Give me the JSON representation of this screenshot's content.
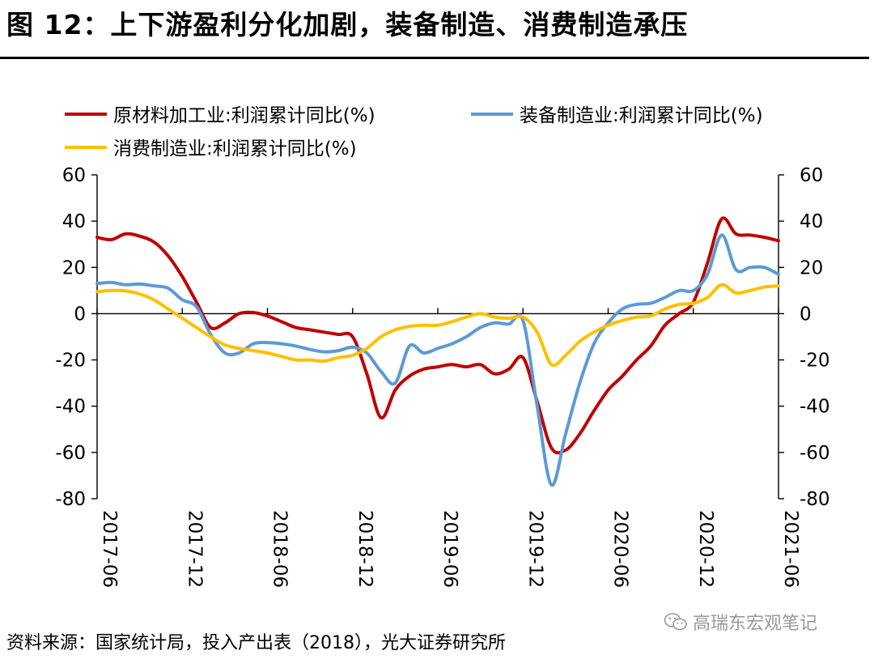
{
  "figure": {
    "title": "图 12：上下游盈利分化加剧，装备制造、消费制造承压",
    "source": "资料来源：国家统计局，投入产出表（2018），光大证券研究所",
    "watermark": "高瑞东宏观笔记"
  },
  "chart_data": {
    "type": "line",
    "title": "",
    "xlabel": "",
    "ylabel": "",
    "ylim": [
      -80,
      60
    ],
    "y2lim": [
      -80,
      60
    ],
    "yticks": [
      60,
      40,
      20,
      0,
      -20,
      -40,
      -60,
      -80
    ],
    "x_range": [
      "2017-06",
      "2021-06"
    ],
    "x_ticks": [
      "2017-06",
      "2017-12",
      "2018-06",
      "2018-12",
      "2019-06",
      "2019-12",
      "2020-06",
      "2020-12",
      "2021-06"
    ],
    "legend_position": "top",
    "series": [
      {
        "name": "原材料加工业:利润累计同比(%)",
        "color": "#C00000",
        "points": [
          [
            "2017-06",
            33
          ],
          [
            "2017-07",
            32
          ],
          [
            "2017-08",
            34.5
          ],
          [
            "2017-09",
            33.5
          ],
          [
            "2017-10",
            31
          ],
          [
            "2017-11",
            25
          ],
          [
            "2017-12",
            16
          ],
          [
            "2018-01",
            5
          ],
          [
            "2018-02",
            -6
          ],
          [
            "2018-03",
            -4
          ],
          [
            "2018-04",
            0
          ],
          [
            "2018-05",
            0.5
          ],
          [
            "2018-06",
            -1
          ],
          [
            "2018-07",
            -3.5
          ],
          [
            "2018-08",
            -6
          ],
          [
            "2018-09",
            -7
          ],
          [
            "2018-10",
            -8
          ],
          [
            "2018-11",
            -9
          ],
          [
            "2018-12",
            -10
          ],
          [
            "2019-01",
            -26
          ],
          [
            "2019-02",
            -45
          ],
          [
            "2019-03",
            -33
          ],
          [
            "2019-04",
            -27
          ],
          [
            "2019-05",
            -24
          ],
          [
            "2019-06",
            -23
          ],
          [
            "2019-07",
            -22
          ],
          [
            "2019-08",
            -23
          ],
          [
            "2019-09",
            -22
          ],
          [
            "2019-10",
            -26
          ],
          [
            "2019-11",
            -24
          ],
          [
            "2019-12",
            -19
          ],
          [
            "2020-01",
            -38
          ],
          [
            "2020-02",
            -58
          ],
          [
            "2020-03",
            -59
          ],
          [
            "2020-04",
            -52
          ],
          [
            "2020-05",
            -42
          ],
          [
            "2020-06",
            -33
          ],
          [
            "2020-07",
            -27
          ],
          [
            "2020-08",
            -20
          ],
          [
            "2020-09",
            -14
          ],
          [
            "2020-10",
            -5
          ],
          [
            "2020-11",
            0
          ],
          [
            "2020-12",
            5
          ],
          [
            "2021-01",
            22
          ],
          [
            "2021-02",
            41
          ],
          [
            "2021-03",
            34.5
          ],
          [
            "2021-04",
            34
          ],
          [
            "2021-05",
            33
          ],
          [
            "2021-06",
            31.5
          ]
        ]
      },
      {
        "name": "装备制造业:利润累计同比(%)",
        "color": "#5B9BD5",
        "points": [
          [
            "2017-06",
            13
          ],
          [
            "2017-07",
            13.5
          ],
          [
            "2017-08",
            12.5
          ],
          [
            "2017-09",
            12.8
          ],
          [
            "2017-10",
            12
          ],
          [
            "2017-11",
            11
          ],
          [
            "2017-12",
            6
          ],
          [
            "2018-01",
            3
          ],
          [
            "2018-02",
            -9
          ],
          [
            "2018-03",
            -17
          ],
          [
            "2018-04",
            -17
          ],
          [
            "2018-05",
            -13
          ],
          [
            "2018-06",
            -12.5
          ],
          [
            "2018-07",
            -13
          ],
          [
            "2018-08",
            -14
          ],
          [
            "2018-09",
            -15.5
          ],
          [
            "2018-10",
            -16.5
          ],
          [
            "2018-11",
            -16
          ],
          [
            "2018-12",
            -14.5
          ],
          [
            "2019-01",
            -17
          ],
          [
            "2019-02",
            -25
          ],
          [
            "2019-03",
            -30
          ],
          [
            "2019-04",
            -14
          ],
          [
            "2019-05",
            -17
          ],
          [
            "2019-06",
            -15
          ],
          [
            "2019-07",
            -13
          ],
          [
            "2019-08",
            -10
          ],
          [
            "2019-09",
            -6
          ],
          [
            "2019-10",
            -4
          ],
          [
            "2019-11",
            -4.5
          ],
          [
            "2019-12",
            -3
          ],
          [
            "2020-01",
            -40
          ],
          [
            "2020-02",
            -74
          ],
          [
            "2020-03",
            -52
          ],
          [
            "2020-04",
            -30
          ],
          [
            "2020-05",
            -13
          ],
          [
            "2020-06",
            -4
          ],
          [
            "2020-07",
            2
          ],
          [
            "2020-08",
            4
          ],
          [
            "2020-09",
            4.5
          ],
          [
            "2020-10",
            7
          ],
          [
            "2020-11",
            10
          ],
          [
            "2020-12",
            10
          ],
          [
            "2021-01",
            17
          ],
          [
            "2021-02",
            34
          ],
          [
            "2021-03",
            19
          ],
          [
            "2021-04",
            20
          ],
          [
            "2021-05",
            20
          ],
          [
            "2021-06",
            17
          ]
        ]
      },
      {
        "name": "消费制造业:利润累计同比(%)",
        "color": "#FFC000",
        "points": [
          [
            "2017-06",
            9.5
          ],
          [
            "2017-07",
            10
          ],
          [
            "2017-08",
            9.8
          ],
          [
            "2017-09",
            8.5
          ],
          [
            "2017-10",
            6
          ],
          [
            "2017-11",
            2
          ],
          [
            "2017-12",
            -2
          ],
          [
            "2018-01",
            -6
          ],
          [
            "2018-02",
            -10
          ],
          [
            "2018-03",
            -13.5
          ],
          [
            "2018-04",
            -15
          ],
          [
            "2018-05",
            -16
          ],
          [
            "2018-06",
            -17
          ],
          [
            "2018-07",
            -18.5
          ],
          [
            "2018-08",
            -20
          ],
          [
            "2018-09",
            -20
          ],
          [
            "2018-10",
            -20.5
          ],
          [
            "2018-11",
            -19
          ],
          [
            "2018-12",
            -18
          ],
          [
            "2019-01",
            -15
          ],
          [
            "2019-02",
            -10
          ],
          [
            "2019-03",
            -7
          ],
          [
            "2019-04",
            -5.5
          ],
          [
            "2019-05",
            -5
          ],
          [
            "2019-06",
            -5
          ],
          [
            "2019-07",
            -3.5
          ],
          [
            "2019-08",
            -1.5
          ],
          [
            "2019-09",
            0
          ],
          [
            "2019-10",
            -1.5
          ],
          [
            "2019-11",
            -2
          ],
          [
            "2019-12",
            -1.5
          ],
          [
            "2020-01",
            -8
          ],
          [
            "2020-02",
            -22
          ],
          [
            "2020-03",
            -18
          ],
          [
            "2020-04",
            -12
          ],
          [
            "2020-05",
            -8
          ],
          [
            "2020-06",
            -5
          ],
          [
            "2020-07",
            -3
          ],
          [
            "2020-08",
            -1.5
          ],
          [
            "2020-09",
            -1
          ],
          [
            "2020-10",
            2
          ],
          [
            "2020-11",
            4
          ],
          [
            "2020-12",
            4.5
          ],
          [
            "2021-01",
            7
          ],
          [
            "2021-02",
            12.5
          ],
          [
            "2021-03",
            9
          ],
          [
            "2021-04",
            10
          ],
          [
            "2021-05",
            11.5
          ],
          [
            "2021-06",
            12
          ]
        ]
      }
    ]
  }
}
